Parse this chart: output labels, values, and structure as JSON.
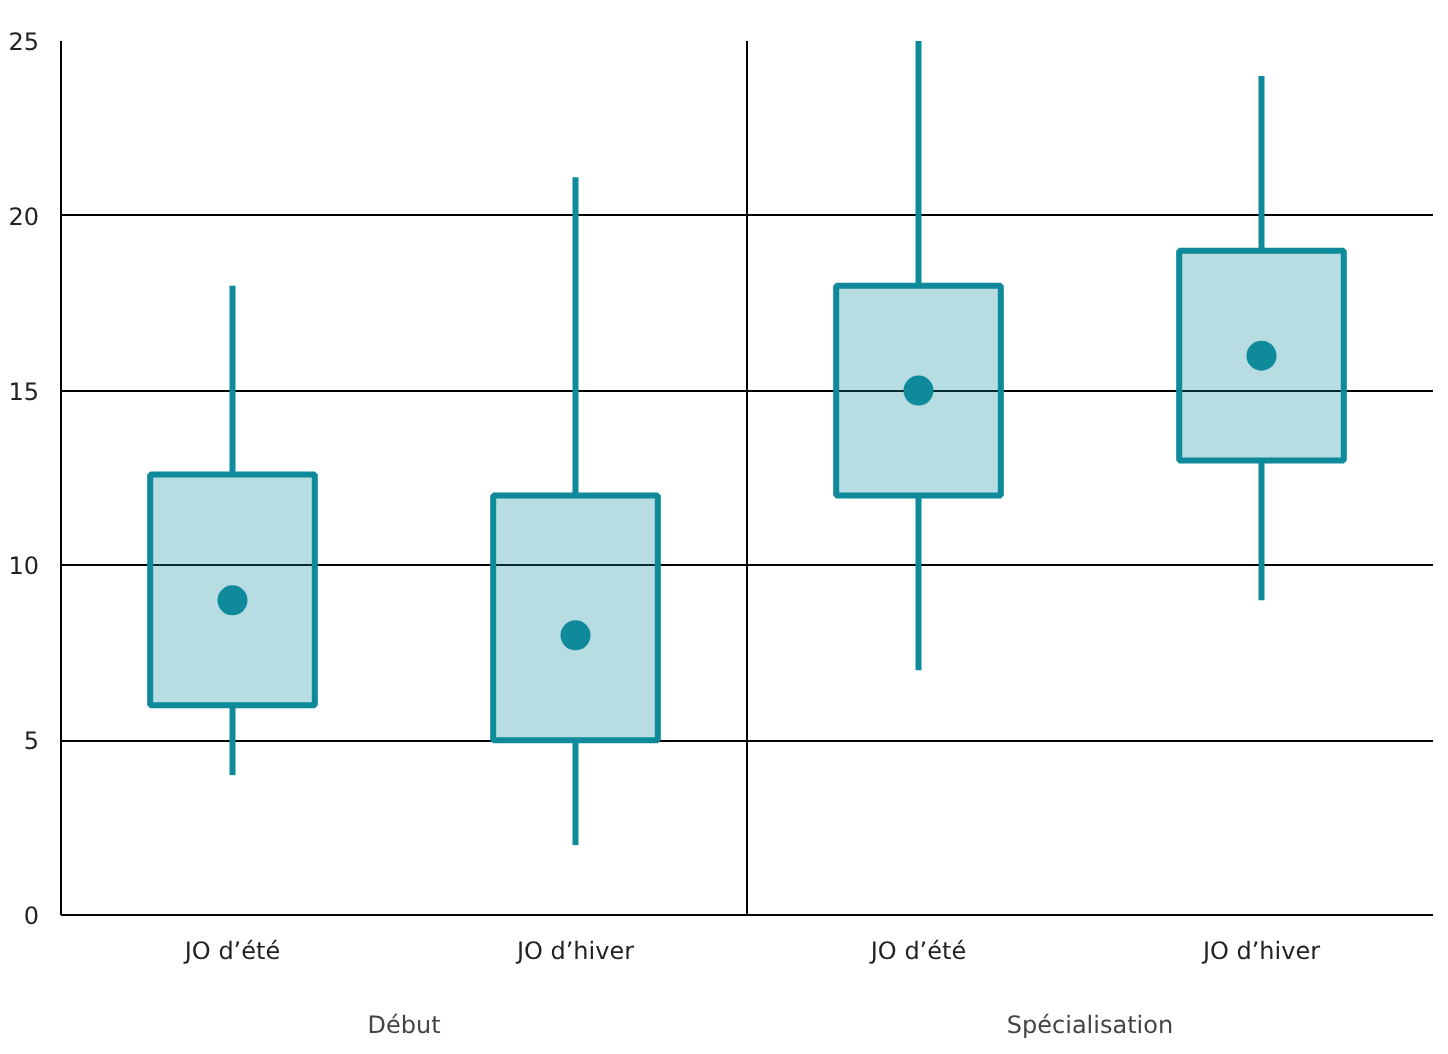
{
  "chart_data": {
    "type": "box",
    "categories": [
      "JO d’été",
      "JO d’hiver",
      "JO d’été",
      "JO d’hiver"
    ],
    "boxes": [
      {
        "low": 4,
        "q1": 6,
        "median": 9,
        "q3": 12.6,
        "high": 18
      },
      {
        "low": 2,
        "q1": 5,
        "median": 8,
        "q3": 12,
        "high": 21.1
      },
      {
        "low": 7,
        "q1": 12,
        "median": 15,
        "q3": 18,
        "high": 25
      },
      {
        "low": 9,
        "q1": 13,
        "median": 16,
        "q3": 19,
        "high": 24
      }
    ],
    "color": "#0f8a9b",
    "ylim": [
      0,
      25
    ],
    "yticks": [
      0,
      5,
      10,
      15,
      20,
      25
    ],
    "grid": "y",
    "annotations": [
      "Début",
      "Spécialisation"
    ]
  }
}
